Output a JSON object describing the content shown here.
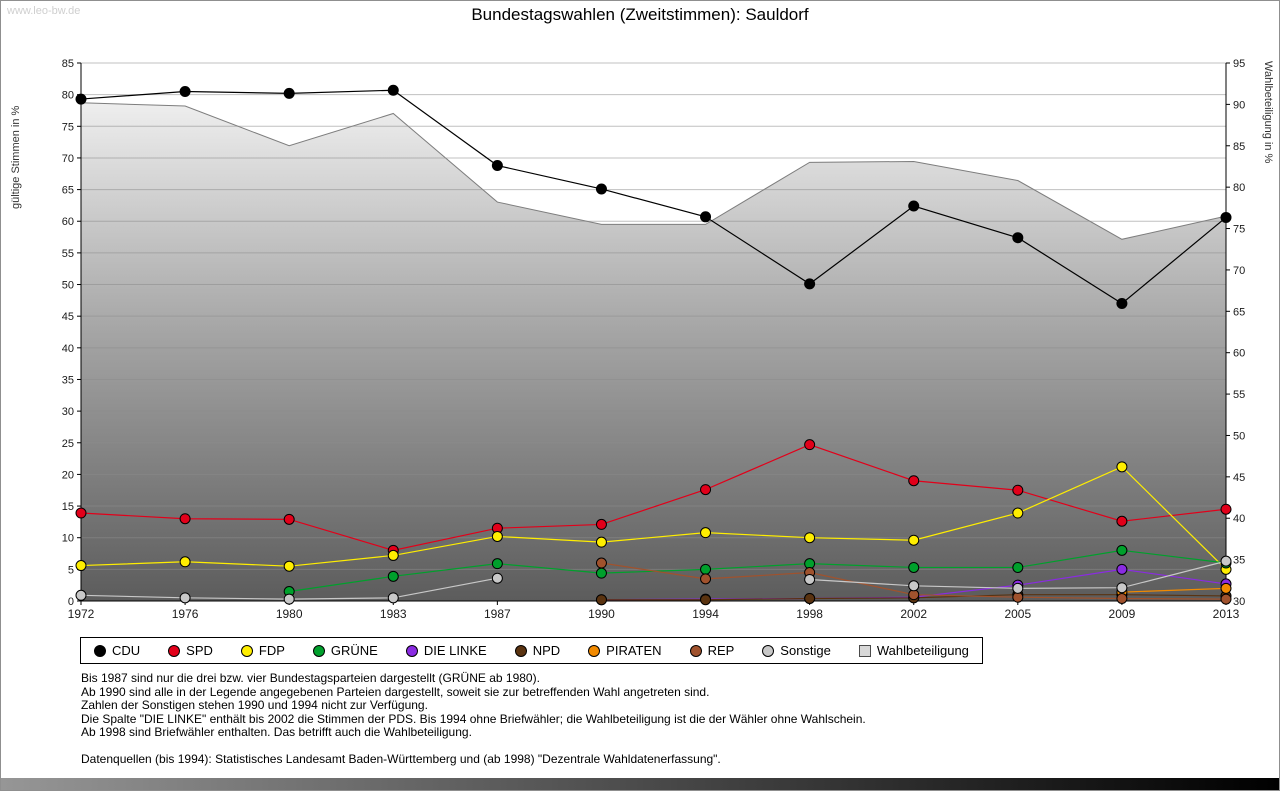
{
  "watermark": "www.leo-bw.de",
  "title": "Bundestagswahlen (Zweitstimmen): Sauldorf",
  "chart_data": {
    "type": "line",
    "x_categories": [
      "1972",
      "1976",
      "1980",
      "1983",
      "1987",
      "1990",
      "1994",
      "1998",
      "2002",
      "2005",
      "2009",
      "2013"
    ],
    "left_axis": {
      "label": "gültige Stimmen in %",
      "min": 0,
      "max": 85,
      "tick_step": 5
    },
    "right_axis": {
      "label": "Wahlbeteiligung in %",
      "min": 30,
      "max": 95,
      "tick_step": 5
    },
    "grid": true,
    "legend_position": "bottom",
    "area_gradient": [
      "#fbfbfb",
      "#a5a5a5",
      "#5c5c5c"
    ],
    "series": [
      {
        "name": "CDU",
        "color": "#000000",
        "axis": "left",
        "values": [
          79.3,
          80.5,
          80.2,
          80.7,
          68.8,
          65.1,
          60.7,
          50.1,
          62.4,
          57.4,
          47.0,
          60.6
        ]
      },
      {
        "name": "SPD",
        "color": "#e2001a",
        "axis": "left",
        "values": [
          13.9,
          13.0,
          12.9,
          8.0,
          11.5,
          12.1,
          17.6,
          24.7,
          19.0,
          17.5,
          12.6,
          14.5
        ]
      },
      {
        "name": "FDP",
        "color": "#ffee00",
        "axis": "left",
        "values": [
          5.6,
          6.2,
          5.5,
          7.2,
          10.2,
          9.3,
          10.8,
          10.0,
          9.6,
          13.9,
          21.2,
          5.0
        ]
      },
      {
        "name": "GRÜNE",
        "color": "#00a02c",
        "axis": "left",
        "values": [
          null,
          null,
          1.5,
          3.9,
          5.9,
          4.4,
          5.0,
          5.9,
          5.3,
          5.3,
          8.0,
          6.0
        ]
      },
      {
        "name": "DIE LINKE",
        "color": "#8a2be2",
        "axis": "left",
        "values": [
          null,
          null,
          null,
          null,
          null,
          0.2,
          0.3,
          0.4,
          0.6,
          2.5,
          5.0,
          2.7
        ]
      },
      {
        "name": "NPD",
        "color": "#5a3310",
        "axis": "left",
        "values": [
          null,
          null,
          null,
          null,
          null,
          0.2,
          0.2,
          0.4,
          0.5,
          1.0,
          1.0,
          0.8
        ]
      },
      {
        "name": "PIRATEN",
        "color": "#f28a00",
        "axis": "left",
        "values": [
          null,
          null,
          null,
          null,
          null,
          null,
          null,
          null,
          null,
          null,
          1.4,
          2.0
        ]
      },
      {
        "name": "REP",
        "color": "#a0522d",
        "axis": "left",
        "values": [
          null,
          null,
          null,
          null,
          null,
          6.0,
          3.5,
          4.5,
          1.0,
          0.6,
          0.4,
          0.3
        ]
      },
      {
        "name": "Sonstige",
        "color": "#c8c8c8",
        "axis": "left",
        "values": [
          0.9,
          0.5,
          0.3,
          0.5,
          3.6,
          null,
          null,
          3.4,
          2.4,
          2.0,
          2.1,
          6.3
        ]
      }
    ],
    "participation": {
      "name": "Wahlbeteiligung",
      "axis": "right",
      "line_color": "#7d7d7d",
      "legend_fill": "#d8d8d8",
      "values": [
        90.2,
        89.8,
        85.0,
        88.9,
        78.2,
        75.5,
        75.5,
        83.0,
        83.1,
        80.8,
        73.7,
        76.5
      ]
    }
  },
  "footnotes": [
    "Bis 1987 sind nur die drei bzw. vier Bundestagsparteien dargestellt (GRÜNE ab 1980).",
    "Ab 1990 sind alle in der Legende angegebenen Parteien dargestellt, soweit sie zur betreffenden Wahl angetreten sind.",
    "Zahlen der Sonstigen stehen 1990 und 1994 nicht zur Verfügung.",
    "Die Spalte \"DIE LINKE\" enthält bis 2002 die Stimmen der PDS. Bis 1994 ohne Briefwähler; die Wahlbeteiligung ist die der Wähler ohne Wahlschein.",
    "Ab 1998 sind Briefwähler enthalten. Das betrifft auch die Wahlbeteiligung.",
    "",
    "Datenquellen (bis 1994): Statistisches Landesamt Baden-Württemberg und (ab 1998) \"Dezentrale Wahldatenerfassung\"."
  ]
}
